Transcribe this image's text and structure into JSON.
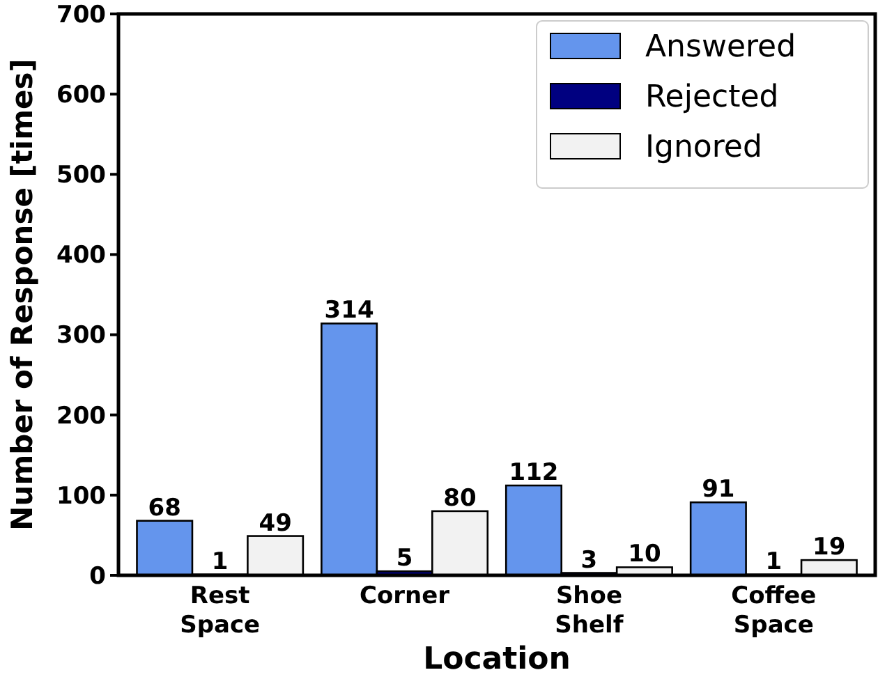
{
  "chart_data": {
    "type": "bar",
    "xlabel": "Location",
    "ylabel": "Number of Response [times]",
    "categories": [
      "Rest Space",
      "Corner",
      "Shoe Shelf",
      "Coffee Space"
    ],
    "series": [
      {
        "name": "Answered",
        "color": "#6495ed",
        "values": [
          68,
          314,
          112,
          91
        ]
      },
      {
        "name": "Rejected",
        "color": "#000080",
        "values": [
          1,
          5,
          3,
          1
        ]
      },
      {
        "name": "Ignored",
        "color": "#f2f2f2",
        "values": [
          49,
          80,
          10,
          19
        ]
      }
    ],
    "ylim": [
      0,
      700
    ],
    "yticks": [
      0,
      100,
      200,
      300,
      400,
      500,
      600,
      700
    ],
    "data_labels": true,
    "legend": "top right",
    "grid": false
  }
}
